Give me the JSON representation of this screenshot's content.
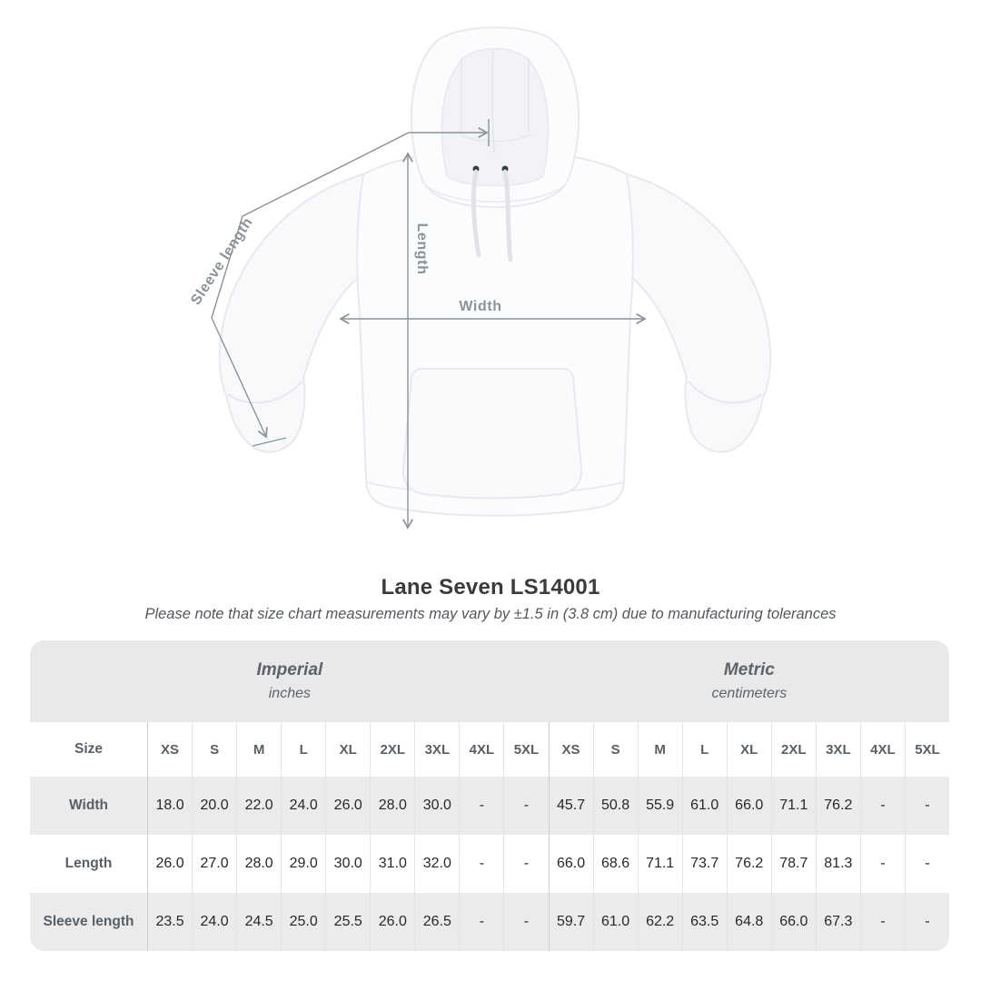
{
  "product": {
    "title": "Lane Seven LS14001",
    "note": "Please note that size chart measurements may vary by ±1.5 in (3.8 cm) due to manufacturing tolerances"
  },
  "diagram": {
    "labels": {
      "width": "Width",
      "length": "Length",
      "sleeve": "Sleeve length"
    },
    "annotation_color": "#8c9298"
  },
  "table": {
    "size_header": "Size",
    "sections": [
      {
        "label": "Imperial",
        "sublabel": "inches"
      },
      {
        "label": "Metric",
        "sublabel": "centimeters"
      }
    ],
    "sizes": [
      "XS",
      "S",
      "M",
      "L",
      "XL",
      "2XL",
      "3XL",
      "4XL",
      "5XL"
    ],
    "rows": [
      {
        "label": "Width",
        "imperial": [
          "18.0",
          "20.0",
          "22.0",
          "24.0",
          "26.0",
          "28.0",
          "30.0",
          "-",
          "-"
        ],
        "metric": [
          "45.7",
          "50.8",
          "55.9",
          "61.0",
          "66.0",
          "71.1",
          "76.2",
          "-",
          "-"
        ]
      },
      {
        "label": "Length",
        "imperial": [
          "26.0",
          "27.0",
          "28.0",
          "29.0",
          "30.0",
          "31.0",
          "32.0",
          "-",
          "-"
        ],
        "metric": [
          "66.0",
          "68.6",
          "71.1",
          "73.7",
          "76.2",
          "78.7",
          "81.3",
          "-",
          "-"
        ]
      },
      {
        "label": "Sleeve length",
        "imperial": [
          "23.5",
          "24.0",
          "24.5",
          "25.0",
          "25.5",
          "26.0",
          "26.5",
          "-",
          "-"
        ],
        "metric": [
          "59.7",
          "61.0",
          "62.2",
          "63.5",
          "64.8",
          "66.0",
          "67.3",
          "-",
          "-"
        ]
      }
    ],
    "colors": {
      "header_bg": "#e9e9ea",
      "row_alt_bg": "#ebebec",
      "divider": "#e4e4e5",
      "divider_major": "#cdcdce"
    }
  }
}
